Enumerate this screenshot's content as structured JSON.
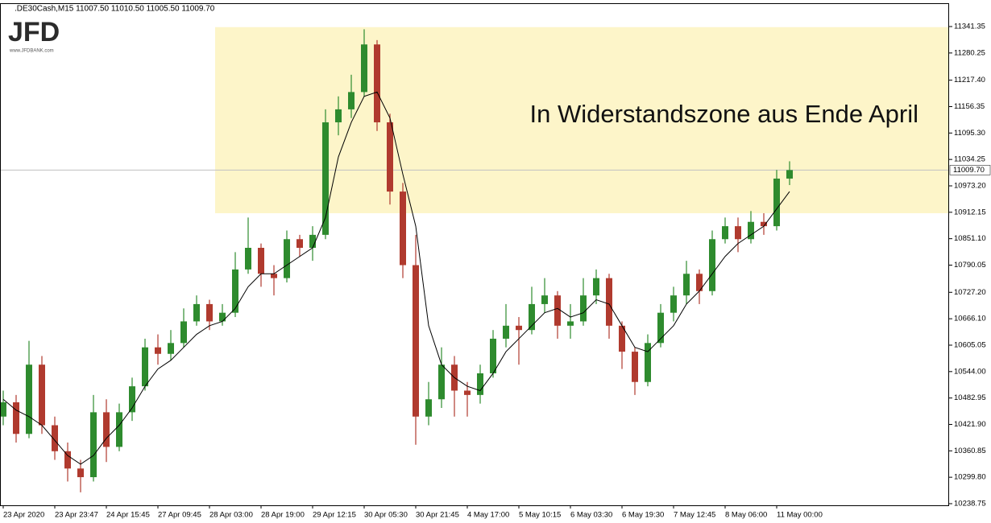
{
  "chart_data": {
    "type": "candlestick",
    "header": ".DE30Cash,M15  11007.50 11010.50 11005.50 11009.70",
    "logo": "JFD",
    "logo_url": "www.JFDBANK.com",
    "annotation": "In Widerstandszone aus Ende April",
    "up_color": "#2e8b2e",
    "down_color": "#b03a2e",
    "categories": [
      "23 Apr 2020",
      null,
      null,
      null,
      "23 Apr 23:47",
      null,
      null,
      null,
      "24 Apr 15:45",
      null,
      null,
      null,
      "27 Apr 09:45",
      null,
      null,
      null,
      "28 Apr 03:00",
      null,
      null,
      null,
      "28 Apr 19:00",
      null,
      null,
      null,
      "29 Apr 12:15",
      null,
      null,
      null,
      "30 Apr 05:30",
      null,
      null,
      null,
      "30 Apr 21:45",
      null,
      null,
      null,
      "4 May 17:00",
      null,
      null,
      null,
      "5 May 10:15",
      null,
      null,
      null,
      "6 May 03:30",
      null,
      null,
      null,
      "6 May 19:30",
      null,
      null,
      null,
      "7 May 12:45",
      null,
      null,
      null,
      "8 May 06:00",
      null,
      null,
      null,
      "11 May 00:00",
      null
    ],
    "open": [
      10440,
      10473,
      10400,
      10560,
      10420,
      10360,
      10320,
      10300,
      10450,
      10370,
      10450,
      10510,
      10600,
      10585,
      10610,
      10660,
      10700,
      10660,
      10680,
      10780,
      10830,
      10770,
      10760,
      10850,
      10830,
      10860,
      11120,
      11150,
      11190,
      11300,
      11120,
      10960,
      10790,
      10440,
      10480,
      10560,
      10500,
      10490,
      10540,
      10620,
      10650,
      10640,
      10700,
      10720,
      10650,
      10660,
      10720,
      10760,
      10650,
      10590,
      10520,
      10610,
      10680,
      10720,
      10770,
      10730,
      10850,
      10880,
      10850,
      10890,
      10880,
      10990
    ],
    "high": [
      10500,
      10490,
      10615,
      10580,
      10440,
      10380,
      10340,
      10490,
      10480,
      10470,
      10530,
      10620,
      10630,
      10640,
      10690,
      10720,
      10710,
      10700,
      10820,
      10900,
      10840,
      10790,
      10870,
      10860,
      10880,
      11150,
      11180,
      11230,
      11335,
      11310,
      11140,
      10980,
      10860,
      10520,
      10600,
      10580,
      10520,
      10560,
      10640,
      10700,
      10670,
      10740,
      10760,
      10730,
      10700,
      10760,
      10780,
      10770,
      10660,
      10600,
      10630,
      10700,
      10740,
      10800,
      10780,
      10870,
      10900,
      10900,
      10915,
      10910,
      11010,
      11030
    ],
    "low": [
      10420,
      10380,
      10390,
      10400,
      10340,
      10290,
      10265,
      10290,
      10335,
      10360,
      10430,
      10500,
      10560,
      10570,
      10600,
      10650,
      10640,
      10650,
      10670,
      10770,
      10740,
      10720,
      10750,
      10810,
      10800,
      10850,
      11090,
      11130,
      11180,
      11100,
      10930,
      10760,
      10375,
      10420,
      10460,
      10440,
      10440,
      10470,
      10530,
      10600,
      10560,
      10630,
      10680,
      10620,
      10620,
      10650,
      10700,
      10620,
      10550,
      10490,
      10510,
      10600,
      10660,
      10700,
      10700,
      10720,
      10840,
      10820,
      10840,
      10860,
      10870,
      10975
    ],
    "close": [
      10473,
      10400,
      10560,
      10420,
      10360,
      10320,
      10300,
      10450,
      10370,
      10450,
      10510,
      10600,
      10585,
      10610,
      10660,
      10700,
      10660,
      10680,
      10780,
      10830,
      10770,
      10760,
      10850,
      10830,
      10860,
      11120,
      11150,
      11190,
      11300,
      11120,
      10960,
      10790,
      10440,
      10480,
      10560,
      10500,
      10490,
      10540,
      10620,
      10650,
      10640,
      10700,
      10720,
      10650,
      10660,
      10720,
      10760,
      10650,
      10590,
      10520,
      10610,
      10680,
      10720,
      10770,
      10730,
      10850,
      10880,
      10850,
      10890,
      10880,
      10990,
      11009.7
    ],
    "ma": {
      "color": "#000000",
      "values": [
        10480,
        10455,
        10440,
        10420,
        10385,
        10350,
        10330,
        10350,
        10390,
        10420,
        10460,
        10510,
        10550,
        10570,
        10600,
        10630,
        10650,
        10660,
        10690,
        10740,
        10770,
        10770,
        10790,
        10810,
        10830,
        10900,
        11040,
        11120,
        11180,
        11190,
        11130,
        11000,
        10880,
        10650,
        10560,
        10530,
        10510,
        10500,
        10540,
        10590,
        10620,
        10650,
        10680,
        10690,
        10670,
        10680,
        10710,
        10700,
        10650,
        10600,
        10590,
        10620,
        10650,
        10700,
        10730,
        10770,
        10810,
        10840,
        10860,
        10880,
        10920,
        10960
      ]
    },
    "zone": {
      "from": 10910,
      "to": 11340,
      "color": "#fdf5c9"
    },
    "last_price": {
      "value": 11009.7,
      "label": "11009.70"
    },
    "ylim": [
      10235.0,
      11393.4
    ],
    "yticks": [
      11341.35,
      11280.25,
      {
        "value": 11217.4,
        "label": "11217.40"
      },
      11156.35,
      {
        "value": 11095.3,
        "label": "11095.30"
      },
      11034.25,
      {
        "value": 10973.2,
        "label": "10973.20"
      },
      10912.15,
      {
        "value": 10851.1,
        "label": "10851.10"
      },
      10790.05,
      {
        "value": 10727.2,
        "label": "10727.20"
      },
      {
        "value": 10666.1,
        "label": "10666.10"
      },
      10605.05,
      {
        "value": 10544,
        "label": "10544.00"
      },
      10482.95,
      {
        "value": 10421.9,
        "label": "10421.90"
      },
      10360.85,
      {
        "value": 10299.8,
        "label": "10299.80"
      },
      10238.75
    ]
  }
}
